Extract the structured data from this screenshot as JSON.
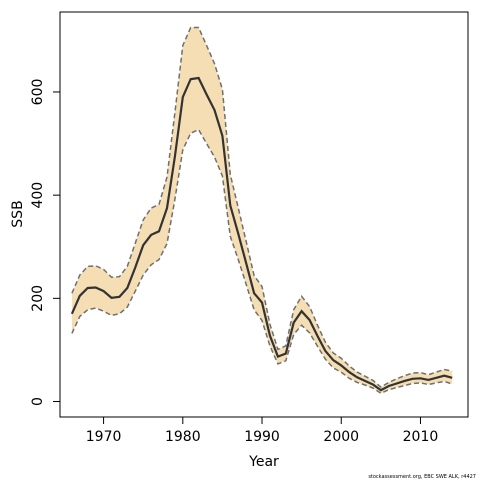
{
  "chart_data": {
    "type": "area",
    "xlabel": "Year",
    "ylabel": "SSB",
    "xlim": [
      1964.5,
      2016
    ],
    "ylim": [
      -30,
      755
    ],
    "x_ticks": [
      1970,
      1980,
      1990,
      2000,
      2010
    ],
    "y_ticks": [
      0,
      200,
      400,
      600
    ],
    "grid": false,
    "colors": {
      "band": "#f5deb3",
      "line": "#333333",
      "bounds": "#6f6f6f"
    },
    "x": [
      1966,
      1967,
      1968,
      1969,
      1970,
      1971,
      1972,
      1973,
      1974,
      1975,
      1976,
      1977,
      1978,
      1979,
      1980,
      1981,
      1982,
      1983,
      1984,
      1985,
      1986,
      1987,
      1988,
      1989,
      1990,
      1991,
      1992,
      1993,
      1994,
      1995,
      1996,
      1997,
      1998,
      1999,
      2000,
      2001,
      2002,
      2003,
      2004,
      2005,
      2006,
      2007,
      2008,
      2009,
      2010,
      2011,
      2012,
      2013,
      2014
    ],
    "series": [
      {
        "values": [
          170,
          205,
          220,
          221,
          214,
          201,
          203,
          220,
          260,
          303,
          323,
          330,
          375,
          475,
          590,
          625,
          627,
          595,
          565,
          515,
          380,
          325,
          268,
          210,
          192,
          128,
          87,
          93,
          153,
          175,
          158,
          127,
          98,
          80,
          70,
          57,
          47,
          40,
          33,
          22,
          30,
          35,
          40,
          44,
          45,
          42,
          46,
          50,
          46
        ]
      },
      {
        "values": [
          132,
          165,
          178,
          181,
          175,
          167,
          170,
          183,
          214,
          245,
          265,
          275,
          306,
          392,
          488,
          520,
          527,
          500,
          474,
          437,
          320,
          275,
          227,
          178,
          157,
          108,
          73,
          79,
          130,
          148,
          133,
          107,
          82,
          65,
          57,
          45,
          37,
          32,
          26,
          16,
          23,
          27,
          31,
          35,
          36,
          33,
          36,
          39,
          34
        ]
      },
      {
        "values": [
          210,
          245,
          262,
          263,
          256,
          241,
          242,
          262,
          307,
          352,
          375,
          382,
          435,
          560,
          690,
          725,
          725,
          690,
          655,
          605,
          440,
          375,
          310,
          244,
          223,
          150,
          101,
          108,
          178,
          204,
          184,
          148,
          115,
          94,
          84,
          69,
          57,
          49,
          41,
          28,
          37,
          44,
          50,
          55,
          56,
          52,
          57,
          62,
          59
        ]
      }
    ]
  },
  "footer_note": "stockassessment.org, EBC SWE ALK, r4427"
}
